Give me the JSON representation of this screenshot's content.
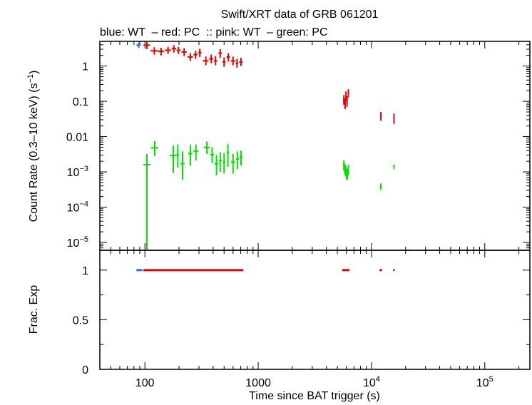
{
  "chart_data": {
    "type": "scatter",
    "title": "Swift/XRT data of GRB 061201",
    "subtitle": "blue: WT  – red: PC  :: pink: WT  – green: PC",
    "xlabel": "Time since BAT trigger (s)",
    "x_scale": "log",
    "xlim": [
      40,
      250000
    ],
    "x_ticks": [
      {
        "value": 100,
        "label": "100"
      },
      {
        "value": 1000,
        "label": "1000"
      },
      {
        "value": 10000,
        "label": "10",
        "exp": "4"
      },
      {
        "value": 100000,
        "label": "10",
        "exp": "5"
      }
    ],
    "colors": {
      "blue": "#1e77dd",
      "red": "#e60000",
      "green": "#00e000"
    },
    "panels": [
      {
        "name": "count-rate",
        "ylabel": "Count Rate (0.3–10 keV) (s",
        "ylabel_sup": "−1",
        "ylabel_end": ")",
        "y_scale": "log",
        "ylim": [
          6e-06,
          5
        ],
        "y_ticks": [
          {
            "value": 1,
            "label": "1"
          },
          {
            "value": 0.1,
            "label": "0.1"
          },
          {
            "value": 0.01,
            "label": "0.01"
          },
          {
            "value": 0.001,
            "label": "10",
            "exp": "−3"
          },
          {
            "value": 0.0001,
            "label": "10",
            "exp": "−4"
          },
          {
            "value": 1e-05,
            "label": "10",
            "exp": "−5"
          }
        ],
        "series": [
          {
            "color": "blue",
            "points": [
              {
                "x": 88,
                "y": 3.9,
                "x_lo": 84,
                "x_hi": 92,
                "y_lo": 3.2,
                "y_hi": 4.6
              }
            ]
          },
          {
            "color": "red",
            "points": [
              {
                "x": 104,
                "y": 3.9,
                "x_lo": 97,
                "x_hi": 111,
                "y_lo": 3.0,
                "y_hi": 5.0
              },
              {
                "x": 121,
                "y": 2.7,
                "x_lo": 112,
                "x_hi": 130,
                "y_lo": 2.1,
                "y_hi": 3.4
              },
              {
                "x": 139,
                "y": 2.6,
                "x_lo": 130,
                "x_hi": 148,
                "y_lo": 2.0,
                "y_hi": 3.3
              },
              {
                "x": 160,
                "y": 2.8,
                "x_lo": 150,
                "x_hi": 170,
                "y_lo": 2.2,
                "y_hi": 3.5
              },
              {
                "x": 180,
                "y": 3.1,
                "x_lo": 172,
                "x_hi": 189,
                "y_lo": 2.4,
                "y_hi": 3.9
              },
              {
                "x": 198,
                "y": 2.8,
                "x_lo": 190,
                "x_hi": 206,
                "y_lo": 2.2,
                "y_hi": 3.5
              },
              {
                "x": 222,
                "y": 2.5,
                "x_lo": 210,
                "x_hi": 234,
                "y_lo": 1.9,
                "y_hi": 3.2
              },
              {
                "x": 252,
                "y": 1.8,
                "x_lo": 238,
                "x_hi": 266,
                "y_lo": 1.4,
                "y_hi": 2.3
              },
              {
                "x": 280,
                "y": 2.1,
                "x_lo": 268,
                "x_hi": 292,
                "y_lo": 1.6,
                "y_hi": 2.7
              },
              {
                "x": 305,
                "y": 2.4,
                "x_lo": 294,
                "x_hi": 316,
                "y_lo": 1.8,
                "y_hi": 3.1
              },
              {
                "x": 345,
                "y": 1.4,
                "x_lo": 325,
                "x_hi": 365,
                "y_lo": 1.05,
                "y_hi": 1.85
              },
              {
                "x": 385,
                "y": 1.6,
                "x_lo": 368,
                "x_hi": 402,
                "y_lo": 1.2,
                "y_hi": 2.1
              },
              {
                "x": 420,
                "y": 1.4,
                "x_lo": 405,
                "x_hi": 435,
                "y_lo": 1.05,
                "y_hi": 1.9
              },
              {
                "x": 462,
                "y": 2.3,
                "x_lo": 446,
                "x_hi": 478,
                "y_lo": 1.7,
                "y_hi": 3.0
              },
              {
                "x": 500,
                "y": 1.3,
                "x_lo": 484,
                "x_hi": 516,
                "y_lo": 0.95,
                "y_hi": 1.75
              },
              {
                "x": 545,
                "y": 1.8,
                "x_lo": 526,
                "x_hi": 564,
                "y_lo": 1.35,
                "y_hi": 2.3
              },
              {
                "x": 600,
                "y": 1.4,
                "x_lo": 572,
                "x_hi": 628,
                "y_lo": 1.05,
                "y_hi": 1.85
              },
              {
                "x": 650,
                "y": 1.2,
                "x_lo": 632,
                "x_hi": 668,
                "y_lo": 0.9,
                "y_hi": 1.6
              },
              {
                "x": 705,
                "y": 1.3,
                "x_lo": 680,
                "x_hi": 730,
                "y_lo": 1.0,
                "y_hi": 1.7
              },
              {
                "x": 5700,
                "y": 0.11,
                "x_lo": 5600,
                "x_hi": 5800,
                "y_lo": 0.08,
                "y_hi": 0.15
              },
              {
                "x": 5850,
                "y": 0.085,
                "x_lo": 5780,
                "x_hi": 5920,
                "y_lo": 0.06,
                "y_hi": 0.12
              },
              {
                "x": 5950,
                "y": 0.14,
                "x_lo": 5900,
                "x_hi": 6000,
                "y_lo": 0.1,
                "y_hi": 0.19
              },
              {
                "x": 6080,
                "y": 0.1,
                "x_lo": 6030,
                "x_hi": 6130,
                "y_lo": 0.07,
                "y_hi": 0.14
              },
              {
                "x": 6250,
                "y": 0.17,
                "x_lo": 6180,
                "x_hi": 6320,
                "y_lo": 0.13,
                "y_hi": 0.22
              },
              {
                "x": 12100,
                "y": 0.038,
                "x_lo": 11900,
                "x_hi": 12300,
                "y_lo": 0.028,
                "y_hi": 0.05
              },
              {
                "x": 15800,
                "y": 0.033,
                "x_lo": 15600,
                "x_hi": 16000,
                "y_lo": 0.023,
                "y_hi": 0.045
              }
            ]
          },
          {
            "color": "green",
            "points": [
              {
                "x": 104,
                "y": 0.0016,
                "x_lo": 97,
                "x_hi": 111,
                "y_lo": 5e-06,
                "y_hi": 0.0032
              },
              {
                "x": 122,
                "y": 0.0048,
                "x_lo": 113,
                "x_hi": 131,
                "y_lo": 0.0028,
                "y_hi": 0.0075
              },
              {
                "x": 178,
                "y": 0.0029,
                "x_lo": 166,
                "x_hi": 190,
                "y_lo": 0.00095,
                "y_hi": 0.0055
              },
              {
                "x": 195,
                "y": 0.0031,
                "x_lo": 190,
                "x_hi": 200,
                "y_lo": 0.0013,
                "y_hi": 0.006
              },
              {
                "x": 215,
                "y": 0.0017,
                "x_lo": 205,
                "x_hi": 225,
                "y_lo": 0.0006,
                "y_hi": 0.0038
              },
              {
                "x": 252,
                "y": 0.0033,
                "x_lo": 240,
                "x_hi": 264,
                "y_lo": 0.0015,
                "y_hi": 0.0058
              },
              {
                "x": 282,
                "y": 0.0039,
                "x_lo": 268,
                "x_hi": 296,
                "y_lo": 0.0021,
                "y_hi": 0.006
              },
              {
                "x": 352,
                "y": 0.0049,
                "x_lo": 330,
                "x_hi": 375,
                "y_lo": 0.0032,
                "y_hi": 0.0072
              },
              {
                "x": 392,
                "y": 0.0031,
                "x_lo": 376,
                "x_hi": 408,
                "y_lo": 0.0018,
                "y_hi": 0.005
              },
              {
                "x": 428,
                "y": 0.0017,
                "x_lo": 410,
                "x_hi": 446,
                "y_lo": 0.0008,
                "y_hi": 0.003
              },
              {
                "x": 462,
                "y": 0.0021,
                "x_lo": 448,
                "x_hi": 476,
                "y_lo": 0.001,
                "y_hi": 0.0036
              },
              {
                "x": 500,
                "y": 0.0019,
                "x_lo": 488,
                "x_hi": 512,
                "y_lo": 0.0009,
                "y_hi": 0.0034
              },
              {
                "x": 540,
                "y": 0.0036,
                "x_lo": 525,
                "x_hi": 555,
                "y_lo": 0.0014,
                "y_hi": 0.0062
              },
              {
                "x": 600,
                "y": 0.0019,
                "x_lo": 575,
                "x_hi": 625,
                "y_lo": 0.0009,
                "y_hi": 0.0032
              },
              {
                "x": 655,
                "y": 0.0023,
                "x_lo": 635,
                "x_hi": 675,
                "y_lo": 0.0012,
                "y_hi": 0.0038
              },
              {
                "x": 705,
                "y": 0.0026,
                "x_lo": 680,
                "x_hi": 730,
                "y_lo": 0.0015,
                "y_hi": 0.004
              },
              {
                "x": 5700,
                "y": 0.0015,
                "x_lo": 5620,
                "x_hi": 5780,
                "y_lo": 0.0011,
                "y_hi": 0.0021
              },
              {
                "x": 5820,
                "y": 0.0012,
                "x_lo": 5760,
                "x_hi": 5880,
                "y_lo": 0.00085,
                "y_hi": 0.0017
              },
              {
                "x": 5920,
                "y": 0.00105,
                "x_lo": 5870,
                "x_hi": 5970,
                "y_lo": 0.00075,
                "y_hi": 0.0015
              },
              {
                "x": 6020,
                "y": 0.0009,
                "x_lo": 5970,
                "x_hi": 6070,
                "y_lo": 0.00062,
                "y_hi": 0.0013
              },
              {
                "x": 6120,
                "y": 0.00085,
                "x_lo": 6070,
                "x_hi": 6170,
                "y_lo": 0.0006,
                "y_hi": 0.0012
              },
              {
                "x": 6250,
                "y": 0.0011,
                "x_lo": 6180,
                "x_hi": 6320,
                "y_lo": 0.0008,
                "y_hi": 0.0016
              },
              {
                "x": 12100,
                "y": 0.00038,
                "x_lo": 11850,
                "x_hi": 12350,
                "y_lo": 0.00031,
                "y_hi": 0.00047
              },
              {
                "x": 15800,
                "y": 0.0014,
                "x_lo": 15600,
                "x_hi": 16000,
                "y_lo": 0.0012,
                "y_hi": 0.0016
              }
            ]
          }
        ]
      },
      {
        "name": "frac-exp",
        "ylabel": "Frac. Exp",
        "y_scale": "linear",
        "ylim": [
          0,
          1.2
        ],
        "y_ticks": [
          {
            "value": 0,
            "label": "0"
          },
          {
            "value": 0.5,
            "label": "0.5"
          },
          {
            "value": 1,
            "label": "1"
          }
        ],
        "segments": [
          {
            "color": "blue",
            "x0": 84,
            "x1": 95,
            "y": 1
          },
          {
            "color": "red",
            "x0": 97,
            "x1": 740,
            "y": 1
          },
          {
            "color": "red",
            "x0": 5500,
            "x1": 6400,
            "y": 1
          },
          {
            "color": "red",
            "x0": 11800,
            "x1": 12400,
            "y": 1
          },
          {
            "color": "red",
            "x0": 15550,
            "x1": 16050,
            "y": 1
          }
        ]
      }
    ]
  }
}
